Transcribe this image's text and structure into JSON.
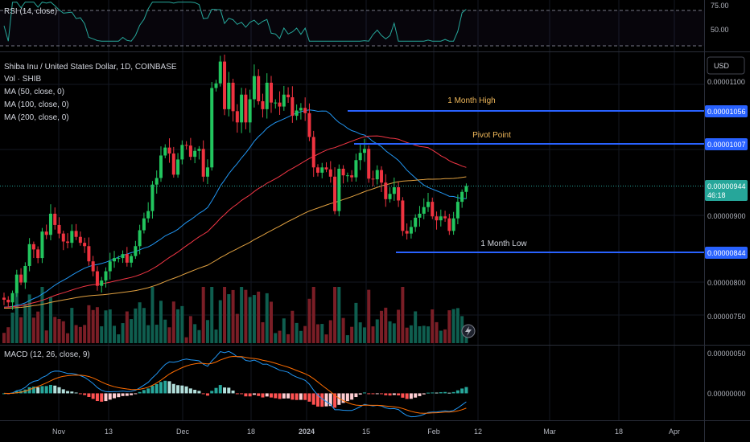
{
  "panes": {
    "rsi": {
      "label": "RSI (14, close)",
      "ticks": [
        "75.00",
        "50.00"
      ]
    },
    "main": {
      "title": "Shiba Inu / United States Dollar, 1D, COINBASE",
      "indicators": [
        "Vol · SHIB",
        "MA (50, close, 0)",
        "MA (100, close, 0)",
        "MA (200, close, 0)"
      ],
      "currency_button": "USD",
      "ticks": [
        "0.00001100",
        "0.00001056",
        "0.00001007",
        "0.00000944",
        "46:18",
        "0.00000900",
        "0.00000844",
        "0.00000800",
        "0.00000750"
      ],
      "price_tags": [
        {
          "label": "0.00001056",
          "value": 1.056e-05,
          "color": "#2962ff"
        },
        {
          "label": "0.00001007",
          "value": 1.007e-05,
          "color": "#2962ff"
        },
        {
          "label": "0.00000844",
          "value": 8.44e-06,
          "color": "#2962ff"
        }
      ],
      "current_price": {
        "label": "0.00000944",
        "countdown": "46:18",
        "color": "#26a69a"
      }
    },
    "macd": {
      "label": "MACD (12, 26, close, 9)",
      "ticks": [
        "0.00000050",
        "0.00000000"
      ]
    }
  },
  "time_axis": [
    "Nov",
    "13",
    "Dec",
    "18",
    "2024",
    "15",
    "Feb",
    "12",
    "Mar",
    "18",
    "Apr"
  ],
  "chart_data": {
    "type": "candlestick",
    "title": "Shiba Inu / United States Dollar, 1D, COINBASE",
    "ylim": [
      7.1e-06,
      1.14e-05
    ],
    "levels": [
      {
        "name": "1 Month High",
        "value": 1.056e-05
      },
      {
        "name": "Pivot Point",
        "value": 1.007e-05
      },
      {
        "name": "1 Month Low",
        "value": 8.44e-06
      }
    ],
    "series_close": [
      7.72e-06,
      7.68e-06,
      7.82e-06,
      8.1e-06,
      7.98e-06,
      8.23e-06,
      8.56e-06,
      8.48e-06,
      8.35e-06,
      8.75e-06,
      8.7e-06,
      9.02e-06,
      8.85e-06,
      8.72e-06,
      8.6e-06,
      8.58e-06,
      8.76e-06,
      8.67e-06,
      8.58e-06,
      8.53e-06,
      8.3e-06,
      8.15e-06,
      7.93e-06,
      8.01e-06,
      8.15e-06,
      8.3e-06,
      8.35e-06,
      8.35e-06,
      8.41e-06,
      8.28e-06,
      8.38e-06,
      8.53e-06,
      8.77e-06,
      8.95e-06,
      9.06e-06,
      9.46e-06,
      9.56e-06,
      9.9e-06,
      1.002e-05,
      9.93e-06,
      9.61e-06,
      9.84e-06,
      1.006e-05,
      1.005e-05,
      9.88e-06,
      9.97e-06,
      1e-05,
      9.58e-06,
      9.72e-06,
      1.092e-05,
      1.099e-05,
      1.132e-05,
      1.06e-05,
      1.1e-05,
      1.057e-05,
      1.04e-05,
      1.082e-05,
      1.04e-05,
      1.075e-05,
      1.11e-05,
      1.072e-05,
      1.06e-05,
      1.1e-05,
      1.07e-05,
      1.07e-05,
      1.064e-05,
      1.082e-05,
      1.078e-05,
      1.05e-05,
      1.058e-05,
      1.062e-05,
      1.054e-05,
      1.018e-05,
      9.72e-06,
      9.64e-06,
      9.72e-06,
      9.69e-06,
      9.58e-06,
      9.06e-06,
      9.7e-06,
      9.6e-06,
      9.6e-06,
      9.57e-06,
      9.83e-06,
      9.94e-06,
      1e-05,
      9.55e-06,
      9.54e-06,
      9.68e-06,
      9.49e-06,
      9.24e-06,
      9.32e-06,
      9.42e-06,
      9.22e-06,
      8.76e-06,
      8.72e-06,
      8.82e-06,
      8.96e-06,
      9.02e-06,
      9.12e-06,
      9.2e-06,
      8.98e-06,
      8.92e-06,
      8.98e-06,
      8.95e-06,
      8.76e-06,
      8.95e-06,
      9.2e-06,
      9.35e-06,
      9.44e-06
    ],
    "rsi_range": [
      30,
      80
    ],
    "macd_range": [
      -3.5e-07,
      6.2e-07
    ]
  }
}
